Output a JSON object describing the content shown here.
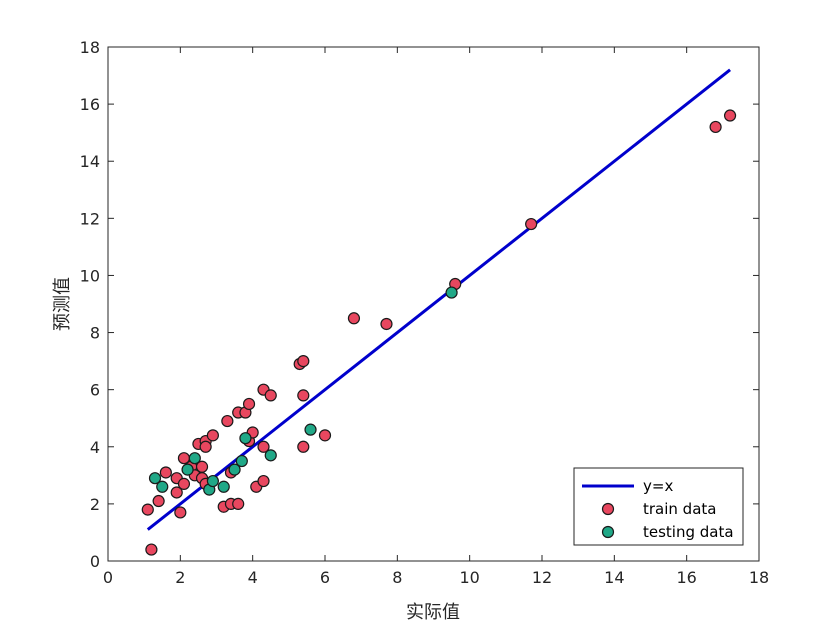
{
  "chart_data": {
    "type": "scatter",
    "xlabel": "实际值",
    "ylabel": "预测值",
    "xlim": [
      0,
      18
    ],
    "ylim": [
      0,
      18
    ],
    "xticks": [
      0,
      2,
      4,
      6,
      8,
      10,
      12,
      14,
      16,
      18
    ],
    "yticks": [
      0,
      2,
      4,
      6,
      8,
      10,
      12,
      14,
      16,
      18
    ],
    "grid": false,
    "legend_position": "bottom-right",
    "line": {
      "name": "y=x",
      "color": "#0000cc",
      "x": [
        1.1,
        17.2
      ],
      "y": [
        1.1,
        17.2
      ]
    },
    "series": [
      {
        "name": "train data",
        "color": "#e8475f",
        "points": [
          [
            1.2,
            0.4
          ],
          [
            1.1,
            1.8
          ],
          [
            1.4,
            2.1
          ],
          [
            1.6,
            3.1
          ],
          [
            1.9,
            2.9
          ],
          [
            1.9,
            2.4
          ],
          [
            2.0,
            1.7
          ],
          [
            2.1,
            2.7
          ],
          [
            2.1,
            3.6
          ],
          [
            2.3,
            3.3
          ],
          [
            2.4,
            3.0
          ],
          [
            2.5,
            4.1
          ],
          [
            2.6,
            3.3
          ],
          [
            2.6,
            2.9
          ],
          [
            2.7,
            4.2
          ],
          [
            2.7,
            4.0
          ],
          [
            2.7,
            2.7
          ],
          [
            2.9,
            4.4
          ],
          [
            3.2,
            1.9
          ],
          [
            3.3,
            4.9
          ],
          [
            3.4,
            3.1
          ],
          [
            3.4,
            2.0
          ],
          [
            3.6,
            2.0
          ],
          [
            3.6,
            5.2
          ],
          [
            3.8,
            5.2
          ],
          [
            3.9,
            4.2
          ],
          [
            3.9,
            5.5
          ],
          [
            4.0,
            4.5
          ],
          [
            4.1,
            2.6
          ],
          [
            4.3,
            4.0
          ],
          [
            4.3,
            2.8
          ],
          [
            4.3,
            6.0
          ],
          [
            4.5,
            5.8
          ],
          [
            5.3,
            6.9
          ],
          [
            5.4,
            7.0
          ],
          [
            5.4,
            5.8
          ],
          [
            5.4,
            4.0
          ],
          [
            6.0,
            4.4
          ],
          [
            6.8,
            8.5
          ],
          [
            7.7,
            8.3
          ],
          [
            9.6,
            9.7
          ],
          [
            11.7,
            11.8
          ],
          [
            16.8,
            15.2
          ],
          [
            17.2,
            15.6
          ]
        ]
      },
      {
        "name": "testing data",
        "color": "#20a887",
        "points": [
          [
            1.3,
            2.9
          ],
          [
            1.5,
            2.6
          ],
          [
            2.2,
            3.2
          ],
          [
            2.4,
            3.6
          ],
          [
            2.8,
            2.5
          ],
          [
            2.9,
            2.8
          ],
          [
            3.2,
            2.6
          ],
          [
            3.5,
            3.2
          ],
          [
            3.7,
            3.5
          ],
          [
            3.8,
            4.3
          ],
          [
            4.5,
            3.7
          ],
          [
            5.6,
            4.6
          ],
          [
            9.5,
            9.4
          ]
        ]
      }
    ]
  }
}
